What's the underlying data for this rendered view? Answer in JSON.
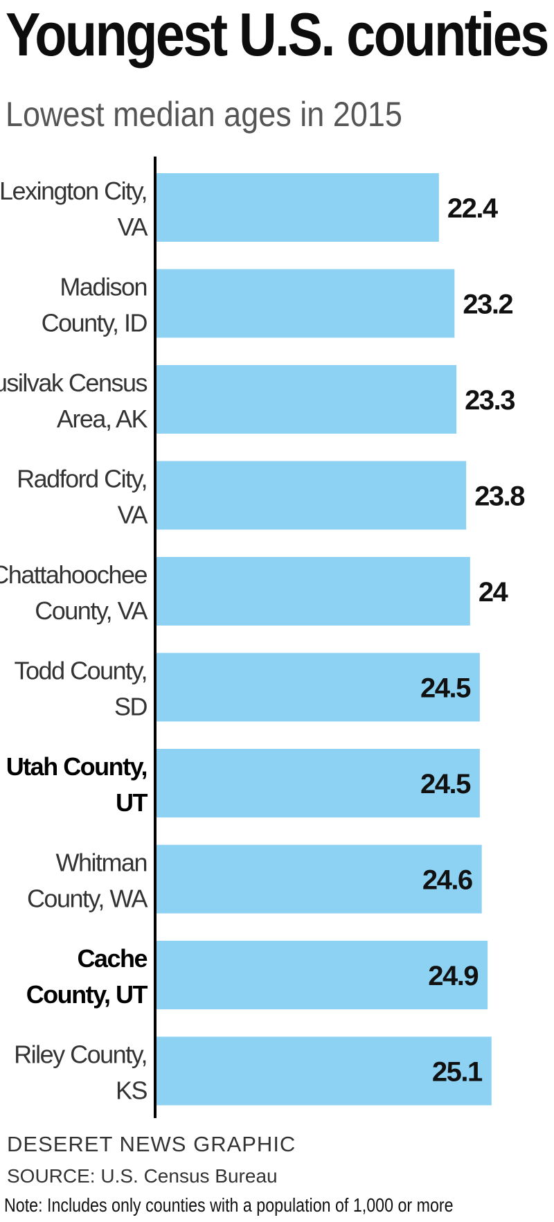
{
  "header": {
    "title": "Youngest U.S. counties",
    "subtitle": "Lowest median ages in 2015"
  },
  "footer": {
    "credit": "DESERET NEWS GRAPHIC",
    "source": "SOURCE: U.S. Census Bureau",
    "note": "Note: Includes only counties with a population of 1,000 or more"
  },
  "colors": {
    "bar": "#8dd2f2",
    "axis": "#000000",
    "label": "#333333",
    "label_bold": "#000000",
    "value": "#111111"
  },
  "chart_data": {
    "type": "bar",
    "orientation": "horizontal",
    "title": "Youngest U.S. counties",
    "subtitle": "Lowest median ages in 2015",
    "xlabel": "",
    "ylabel": "",
    "xlim": [
      0,
      25.5
    ],
    "grid": false,
    "categories": [
      [
        "Lexington City,",
        "VA"
      ],
      [
        "Madison",
        "County, ID"
      ],
      [
        "Kusilvak Census",
        "Area, AK"
      ],
      [
        "Radford City,",
        "VA"
      ],
      [
        "Chattahoochee",
        "County, VA"
      ],
      [
        "Todd County,",
        "SD"
      ],
      [
        "Utah County,",
        "UT"
      ],
      [
        "Whitman",
        "County, WA"
      ],
      [
        "Cache",
        "County, UT"
      ],
      [
        "Riley County,",
        "KS"
      ]
    ],
    "highlighted": [
      false,
      false,
      false,
      false,
      false,
      false,
      true,
      false,
      true,
      false
    ],
    "values": [
      22.4,
      23.2,
      23.3,
      23.8,
      24,
      24.5,
      24.5,
      24.6,
      24.9,
      25.1
    ],
    "value_labels": [
      "22.4",
      "23.2",
      "23.3",
      "23.8",
      "24",
      "24.5",
      "24.5",
      "24.6",
      "24.9",
      "25.1"
    ],
    "label_inside": [
      false,
      false,
      false,
      false,
      false,
      true,
      true,
      true,
      true,
      true
    ]
  }
}
